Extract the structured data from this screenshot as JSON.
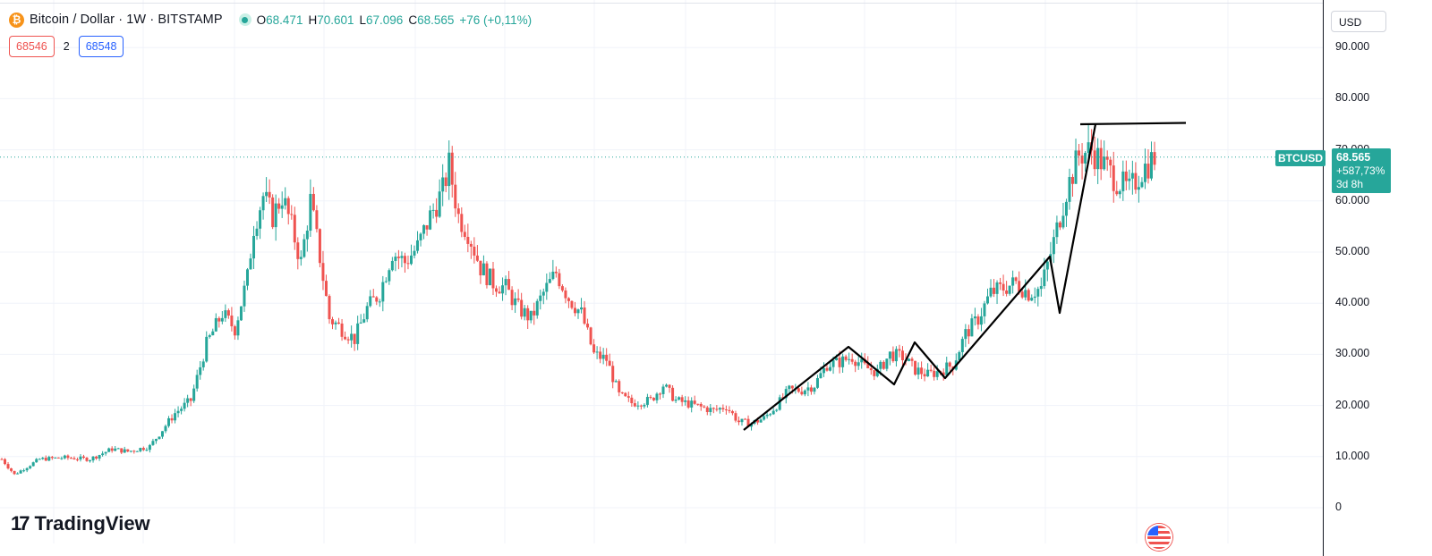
{
  "header": {
    "coin_symbol": "₿",
    "title": "Bitcoin / Dollar · 1W · BITSTAMP",
    "ohlc": {
      "o_key": "O",
      "o": "68.471",
      "h_key": "H",
      "h": "70.601",
      "l_key": "L",
      "l": "67.096",
      "c_key": "C",
      "c": "68.565"
    },
    "change": "+76 (+0,11%)"
  },
  "trade": {
    "sell_price": "68546",
    "spread": "2",
    "buy_price": "68548"
  },
  "currency_selector": "USD",
  "axis": {
    "labels": [
      "90.000",
      "80.000",
      "70.000",
      "60.000",
      "50.000",
      "40.000",
      "30.000",
      "20.000",
      "10.000",
      "0"
    ]
  },
  "price_tag": {
    "symbol": "BTCUSD",
    "price": "68.565",
    "change": "+587,73%",
    "countdown": "3d 8h"
  },
  "brand": "TradingView",
  "colors": {
    "up": "#26a69a",
    "down": "#ef5350",
    "grid": "#f0f3fa",
    "drawing": "#000000",
    "accent": "#2962ff"
  },
  "chart_data": {
    "type": "candlestick",
    "timeframe": "1W",
    "ylim": [
      0,
      100000
    ],
    "y_ticks": [
      0,
      10000,
      20000,
      30000,
      40000,
      50000,
      60000,
      70000,
      80000,
      90000
    ],
    "approx_path": [
      [
        0,
        9500
      ],
      [
        4,
        6500
      ],
      [
        8,
        8000
      ],
      [
        12,
        9500
      ],
      [
        20,
        9800
      ],
      [
        28,
        9500
      ],
      [
        35,
        11500
      ],
      [
        40,
        11000
      ],
      [
        47,
        12000
      ],
      [
        55,
        18500
      ],
      [
        60,
        21000
      ],
      [
        65,
        32000
      ],
      [
        70,
        38000
      ],
      [
        74,
        35000
      ],
      [
        78,
        45000
      ],
      [
        80,
        55000
      ],
      [
        83,
        61000
      ],
      [
        86,
        57000
      ],
      [
        89,
        61000
      ],
      [
        92,
        55000
      ],
      [
        95,
        48000
      ],
      [
        98,
        60000
      ],
      [
        101,
        49000
      ],
      [
        104,
        37000
      ],
      [
        108,
        35000
      ],
      [
        112,
        33000
      ],
      [
        116,
        39000
      ],
      [
        120,
        42000
      ],
      [
        124,
        50000
      ],
      [
        128,
        48000
      ],
      [
        132,
        51000
      ],
      [
        136,
        57000
      ],
      [
        140,
        62000
      ],
      [
        142,
        67000
      ],
      [
        145,
        57000
      ],
      [
        148,
        54000
      ],
      [
        152,
        47000
      ],
      [
        156,
        44000
      ],
      [
        160,
        43000
      ],
      [
        164,
        39000
      ],
      [
        168,
        37000
      ],
      [
        172,
        42000
      ],
      [
        176,
        46000
      ],
      [
        180,
        41000
      ],
      [
        184,
        38000
      ],
      [
        188,
        30000
      ],
      [
        192,
        29000
      ],
      [
        196,
        22000
      ],
      [
        200,
        20500
      ],
      [
        206,
        21000
      ],
      [
        210,
        24000
      ],
      [
        214,
        21000
      ],
      [
        220,
        20000
      ],
      [
        226,
        19000
      ],
      [
        230,
        19800
      ],
      [
        234,
        16800
      ],
      [
        238,
        16500
      ],
      [
        242,
        17500
      ],
      [
        246,
        20000
      ],
      [
        250,
        23000
      ],
      [
        254,
        23000
      ],
      [
        258,
        24000
      ],
      [
        262,
        28000
      ],
      [
        266,
        28500
      ],
      [
        270,
        29500
      ],
      [
        274,
        27500
      ],
      [
        278,
        26500
      ],
      [
        282,
        30000
      ],
      [
        286,
        29500
      ],
      [
        290,
        27000
      ],
      [
        294,
        26000
      ],
      [
        298,
        26800
      ],
      [
        302,
        28000
      ],
      [
        306,
        34000
      ],
      [
        310,
        37000
      ],
      [
        314,
        42000
      ],
      [
        318,
        43000
      ],
      [
        322,
        44000
      ],
      [
        326,
        42000
      ],
      [
        330,
        43000
      ],
      [
        334,
        52000
      ],
      [
        338,
        62000
      ],
      [
        342,
        69000
      ],
      [
        346,
        70000
      ],
      [
        350,
        67000
      ],
      [
        354,
        64000
      ],
      [
        358,
        62000
      ],
      [
        362,
        66000
      ],
      [
        366,
        68565
      ]
    ],
    "trend_lines": [
      {
        "points": [
          [
            16000,
            "Dec 2022"
          ],
          [
            31500,
            "Jul 2023"
          ],
          [
            24500,
            "Sep 2023"
          ],
          [
            32500,
            "Oct 2023"
          ],
          [
            25500,
            "Nov 2023"
          ],
          [
            49000,
            "Jan 2024"
          ],
          [
            38000,
            "Jan 2024"
          ],
          [
            75000,
            "Mar 2024"
          ]
        ]
      },
      {
        "type": "horizontal",
        "value": 75000
      }
    ],
    "last_price": 68565
  }
}
